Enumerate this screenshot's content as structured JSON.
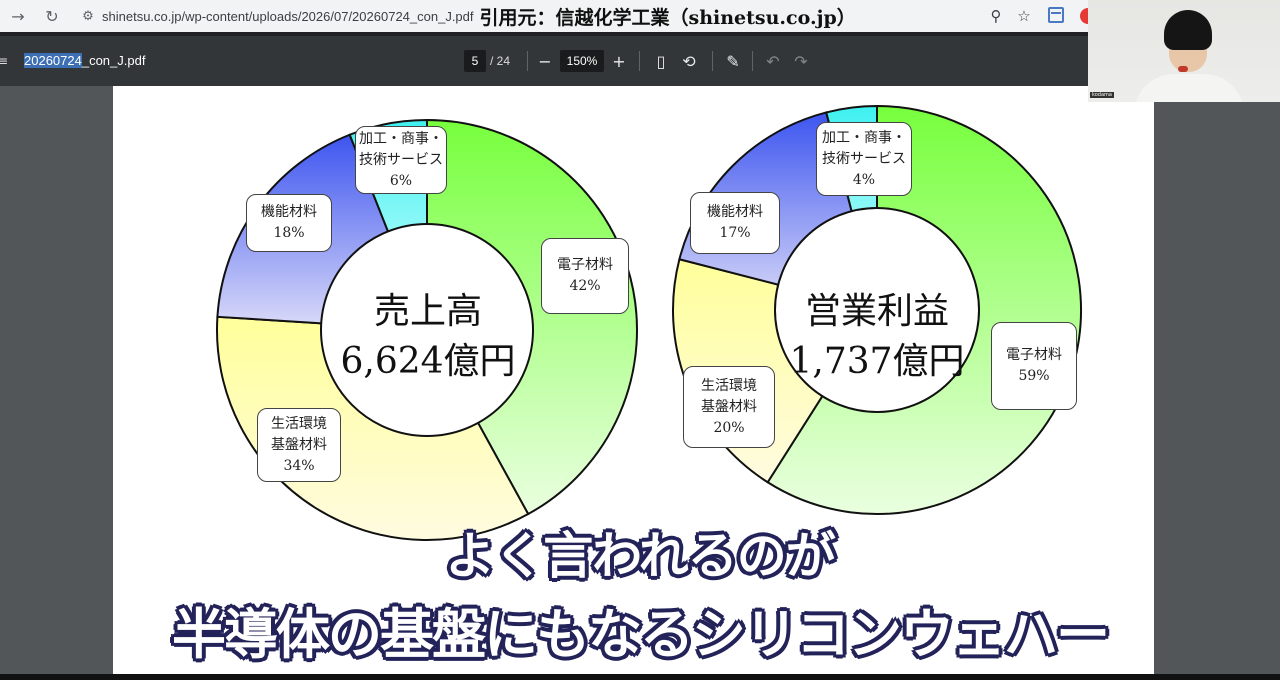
{
  "browser": {
    "url": "shinetsu.co.jp/wp-content/uploads/2026/07/20260724_con_J.pdf",
    "citation": "引用元：信越化学工業（shinetsu.co.jp）"
  },
  "pdf_toolbar": {
    "filename_selected": "20260724",
    "filename_rest": "_con_J.pdf",
    "current_page": "5",
    "total_pages": "/ 24",
    "zoom": "150%"
  },
  "webcam": {
    "name_tag": "kodama"
  },
  "chart_data": [
    {
      "type": "pie",
      "center_line1": "売上高",
      "center_line2": "6,624億円",
      "slices": [
        {
          "label_line1": "電子材料",
          "label_line2": "",
          "value_text": "42%",
          "value": 42
        },
        {
          "label_line1": "生活環境",
          "label_line2": "基盤材料",
          "value_text": "34%",
          "value": 34
        },
        {
          "label_line1": "機能材料",
          "label_line2": "",
          "value_text": "18%",
          "value": 18
        },
        {
          "label_line1": "加工・商事・",
          "label_line2": "技術サービス",
          "value_text": "6%",
          "value": 6
        }
      ]
    },
    {
      "type": "pie",
      "center_line1": "営業利益",
      "center_line2": "1,737億円",
      "slices": [
        {
          "label_line1": "電子材料",
          "label_line2": "",
          "value_text": "59%",
          "value": 59
        },
        {
          "label_line1": "生活環境",
          "label_line2": "基盤材料",
          "value_text": "20%",
          "value": 20
        },
        {
          "label_line1": "機能材料",
          "label_line2": "",
          "value_text": "17%",
          "value": 17
        },
        {
          "label_line1": "加工・商事・",
          "label_line2": "技術サービス",
          "value_text": "4%",
          "value": 4
        }
      ]
    }
  ],
  "colors": {
    "electronic": "#7cff4a",
    "living": "#ffffa0",
    "functional": "#5c6ff0",
    "processing": "#7af4f4"
  },
  "subtitles": {
    "line1": "よく言われるのが",
    "line2": "半導体の基盤にもなるシリコンウェハー"
  }
}
